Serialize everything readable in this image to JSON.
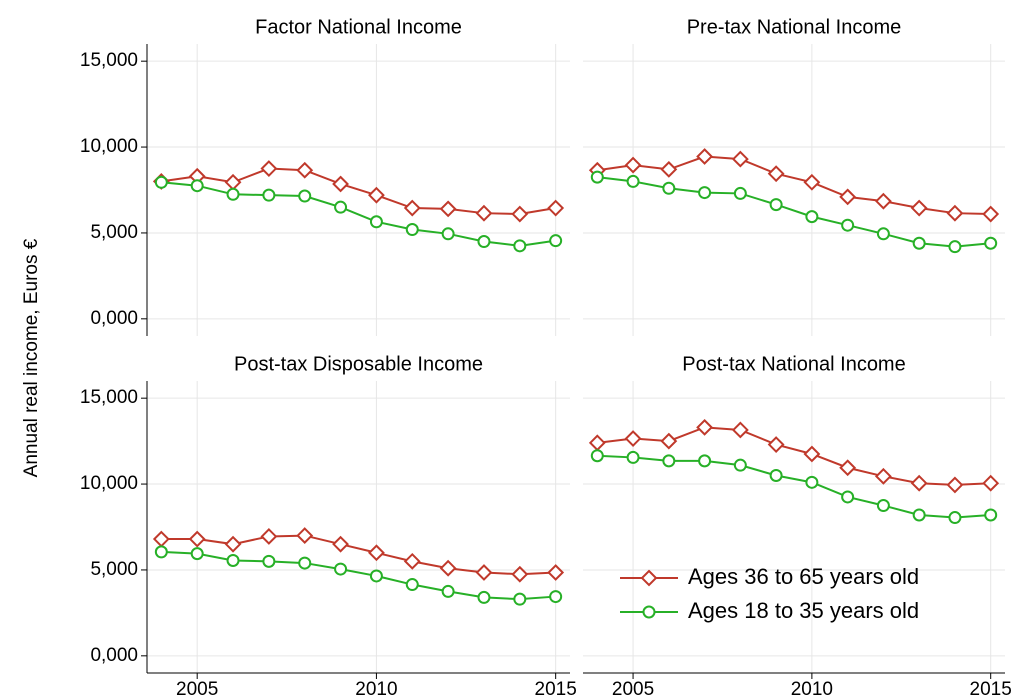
{
  "y_axis_label": "Annual real income, Euros €",
  "chart_data": [
    {
      "type": "line",
      "title": "Factor National Income",
      "x": [
        2004,
        2005,
        2006,
        2007,
        2008,
        2009,
        2010,
        2011,
        2012,
        2013,
        2014,
        2015
      ],
      "xlim": [
        2003.6,
        2015.4
      ],
      "xticks": [
        2005,
        2010,
        2015
      ],
      "ylim": [
        -1000,
        16000
      ],
      "yticks": [
        {
          "value": 0,
          "label": "0,000"
        },
        {
          "value": 5000,
          "label": "5,000"
        },
        {
          "value": 10000,
          "label": "10,000"
        },
        {
          "value": 15000,
          "label": "15,000"
        }
      ],
      "grid": true,
      "series": [
        {
          "name": "Ages 36 to 65 years old",
          "color": "#c0392b",
          "marker": "diamond",
          "values": [
            8000,
            8300,
            7950,
            8750,
            8650,
            7850,
            7200,
            6450,
            6400,
            6150,
            6100,
            6450
          ]
        },
        {
          "name": "Ages 18 to 35 years old",
          "color": "#27b027",
          "marker": "circle",
          "values": [
            7950,
            7750,
            7250,
            7200,
            7150,
            6500,
            5650,
            5200,
            4950,
            4500,
            4250,
            4550
          ]
        }
      ]
    },
    {
      "type": "line",
      "title": "Pre-tax National Income",
      "x": [
        2004,
        2005,
        2006,
        2007,
        2008,
        2009,
        2010,
        2011,
        2012,
        2013,
        2014,
        2015
      ],
      "xlim": [
        2003.6,
        2015.4
      ],
      "xticks": [
        2005,
        2010,
        2015
      ],
      "ylim": [
        -1000,
        16000
      ],
      "yticks": [
        {
          "value": 0,
          "label": "0,000"
        },
        {
          "value": 5000,
          "label": "5,000"
        },
        {
          "value": 10000,
          "label": "10,000"
        },
        {
          "value": 15000,
          "label": "15,000"
        }
      ],
      "grid": true,
      "series": [
        {
          "name": "Ages 36 to 65 years old",
          "color": "#c0392b",
          "marker": "diamond",
          "values": [
            8650,
            8950,
            8700,
            9450,
            9300,
            8450,
            7950,
            7100,
            6850,
            6450,
            6150,
            6100
          ]
        },
        {
          "name": "Ages 18 to 35 years old",
          "color": "#27b027",
          "marker": "circle",
          "values": [
            8250,
            8000,
            7600,
            7350,
            7300,
            6650,
            5950,
            5450,
            4950,
            4400,
            4200,
            4400
          ]
        }
      ]
    },
    {
      "type": "line",
      "title": "Post-tax Disposable Income",
      "x": [
        2004,
        2005,
        2006,
        2007,
        2008,
        2009,
        2010,
        2011,
        2012,
        2013,
        2014,
        2015
      ],
      "xlim": [
        2003.6,
        2015.4
      ],
      "xticks": [
        2005,
        2010,
        2015
      ],
      "ylim": [
        -1000,
        16000
      ],
      "yticks": [
        {
          "value": 0,
          "label": "0,000"
        },
        {
          "value": 5000,
          "label": "5,000"
        },
        {
          "value": 10000,
          "label": "10,000"
        },
        {
          "value": 15000,
          "label": "15,000"
        }
      ],
      "grid": true,
      "series": [
        {
          "name": "Ages 36 to 65 years old",
          "color": "#c0392b",
          "marker": "diamond",
          "values": [
            6800,
            6800,
            6500,
            6950,
            7000,
            6500,
            6000,
            5500,
            5100,
            4850,
            4750,
            4850
          ]
        },
        {
          "name": "Ages 18 to 35 years old",
          "color": "#27b027",
          "marker": "circle",
          "values": [
            6050,
            5950,
            5550,
            5500,
            5400,
            5050,
            4650,
            4150,
            3750,
            3400,
            3300,
            3450
          ]
        }
      ]
    },
    {
      "type": "line",
      "title": "Post-tax National Income",
      "x": [
        2004,
        2005,
        2006,
        2007,
        2008,
        2009,
        2010,
        2011,
        2012,
        2013,
        2014,
        2015
      ],
      "xlim": [
        2003.6,
        2015.4
      ],
      "xticks": [
        2005,
        2010,
        2015
      ],
      "ylim": [
        -1000,
        16000
      ],
      "yticks": [
        {
          "value": 0,
          "label": "0,000"
        },
        {
          "value": 5000,
          "label": "5,000"
        },
        {
          "value": 10000,
          "label": "10,000"
        },
        {
          "value": 15000,
          "label": "15,000"
        }
      ],
      "grid": true,
      "legend": "lower right",
      "series": [
        {
          "name": "Ages 36 to 65 years old",
          "color": "#c0392b",
          "marker": "diamond",
          "values": [
            12400,
            12650,
            12500,
            13300,
            13150,
            12300,
            11750,
            10950,
            10450,
            10050,
            9950,
            10050
          ]
        },
        {
          "name": "Ages 18 to 35 years old",
          "color": "#27b027",
          "marker": "circle",
          "values": [
            11650,
            11550,
            11350,
            11350,
            11100,
            10500,
            10100,
            9250,
            8750,
            8200,
            8050,
            8200
          ]
        }
      ]
    }
  ]
}
